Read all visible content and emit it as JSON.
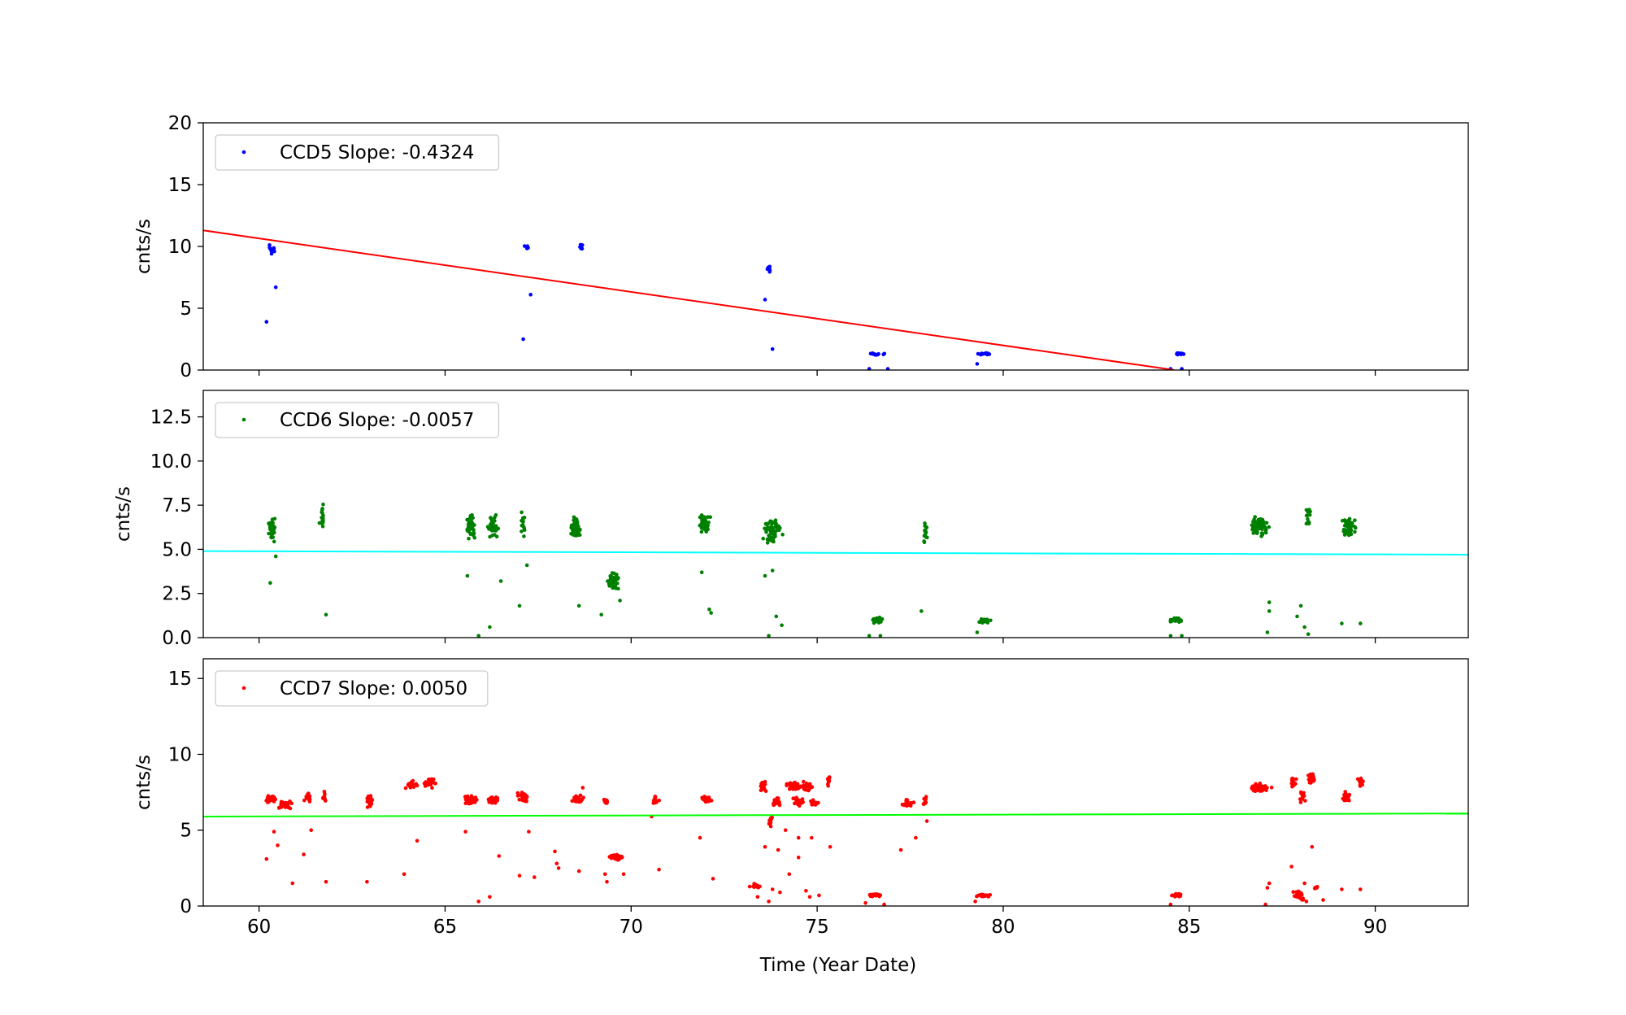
{
  "figure": {
    "xlabel": "Time (Year Date)"
  },
  "chart_data": [
    {
      "type": "scatter",
      "ylabel": "cnts/s",
      "xlim": [
        58.5,
        92.5
      ],
      "ylim": [
        0,
        20
      ],
      "xticks": [
        60,
        65,
        70,
        75,
        80,
        85,
        90
      ],
      "yticks": [
        0,
        5,
        10,
        15,
        20
      ],
      "ytick_labels": [
        "0",
        "5",
        "10",
        "15",
        "20"
      ],
      "show_xtick_labels": false,
      "legend": {
        "label": "CCD5 Slope: -0.4324",
        "placement": "upper-left"
      },
      "series": [
        {
          "color": "#0000ff",
          "clusters": [
            {
              "x": 60.35,
              "y": 9.7,
              "n": 16,
              "xs": 0.08,
              "ys": 0.3
            },
            {
              "x": 67.2,
              "y": 9.95,
              "n": 8,
              "xs": 0.04,
              "ys": 0.15
            },
            {
              "x": 68.65,
              "y": 9.9,
              "n": 8,
              "xs": 0.04,
              "ys": 0.3
            },
            {
              "x": 73.7,
              "y": 8.2,
              "n": 8,
              "xs": 0.05,
              "ys": 0.2
            },
            {
              "x": 76.6,
              "y": 1.3,
              "n": 12,
              "xs": 0.15,
              "ys": 0.06
            },
            {
              "x": 79.5,
              "y": 1.3,
              "n": 12,
              "xs": 0.15,
              "ys": 0.06
            },
            {
              "x": 84.7,
              "y": 1.3,
              "n": 12,
              "xs": 0.12,
              "ys": 0.06
            }
          ],
          "points": [
            [
              60.2,
              3.9
            ],
            [
              60.45,
              6.7
            ],
            [
              67.1,
              2.5
            ],
            [
              67.3,
              6.1
            ],
            [
              73.6,
              5.7
            ],
            [
              73.8,
              1.7
            ],
            [
              76.4,
              0.1
            ],
            [
              76.9,
              0.1
            ],
            [
              79.3,
              0.5
            ],
            [
              84.5,
              0.1
            ],
            [
              84.8,
              0.1
            ]
          ]
        }
      ],
      "fit": {
        "color": "#ff0000",
        "y_start": 11.3,
        "y_end": 0.0,
        "x_start": 58.5,
        "x_end": 84.6
      }
    },
    {
      "type": "scatter",
      "ylabel": "cnts/s",
      "xlim": [
        58.5,
        92.5
      ],
      "ylim": [
        0,
        14
      ],
      "xticks": [
        60,
        65,
        70,
        75,
        80,
        85,
        90
      ],
      "yticks": [
        0,
        2.5,
        5,
        7.5,
        10,
        12.5
      ],
      "ytick_labels": [
        "0.0",
        "2.5",
        "5.0",
        "7.5",
        "10.0",
        "12.5"
      ],
      "show_xtick_labels": false,
      "legend": {
        "label": "CCD6 Slope: -0.0057",
        "placement": "upper-left"
      },
      "series": [
        {
          "color": "#008000",
          "clusters": [
            {
              "x": 60.35,
              "y": 6.2,
              "n": 30,
              "xs": 0.07,
              "ys": 0.5
            },
            {
              "x": 61.7,
              "y": 6.8,
              "n": 14,
              "xs": 0.05,
              "ys": 0.5
            },
            {
              "x": 65.7,
              "y": 6.3,
              "n": 40,
              "xs": 0.1,
              "ys": 0.5
            },
            {
              "x": 66.3,
              "y": 6.2,
              "n": 35,
              "xs": 0.1,
              "ys": 0.5
            },
            {
              "x": 67.1,
              "y": 6.4,
              "n": 14,
              "xs": 0.05,
              "ys": 0.45
            },
            {
              "x": 68.5,
              "y": 6.2,
              "n": 45,
              "xs": 0.12,
              "ys": 0.45
            },
            {
              "x": 69.5,
              "y": 3.2,
              "n": 45,
              "xs": 0.12,
              "ys": 0.35
            },
            {
              "x": 71.95,
              "y": 6.4,
              "n": 45,
              "xs": 0.12,
              "ys": 0.45
            },
            {
              "x": 73.8,
              "y": 6.0,
              "n": 60,
              "xs": 0.18,
              "ys": 0.55
            },
            {
              "x": 76.6,
              "y": 1.0,
              "n": 30,
              "xs": 0.12,
              "ys": 0.12
            },
            {
              "x": 77.9,
              "y": 6.0,
              "n": 16,
              "xs": 0.04,
              "ys": 0.55
            },
            {
              "x": 79.5,
              "y": 0.95,
              "n": 30,
              "xs": 0.12,
              "ys": 0.1
            },
            {
              "x": 84.65,
              "y": 1.0,
              "n": 20,
              "xs": 0.1,
              "ys": 0.12
            },
            {
              "x": 86.9,
              "y": 6.3,
              "n": 70,
              "xs": 0.18,
              "ys": 0.5
            },
            {
              "x": 88.2,
              "y": 6.8,
              "n": 16,
              "xs": 0.06,
              "ys": 0.5
            },
            {
              "x": 89.3,
              "y": 6.2,
              "n": 50,
              "xs": 0.15,
              "ys": 0.45
            }
          ],
          "points": [
            [
              60.3,
              3.1
            ],
            [
              60.45,
              4.6
            ],
            [
              61.8,
              1.3
            ],
            [
              65.6,
              3.5
            ],
            [
              65.9,
              0.1
            ],
            [
              66.2,
              0.6
            ],
            [
              66.5,
              3.2
            ],
            [
              67.0,
              1.8
            ],
            [
              67.2,
              4.1
            ],
            [
              68.6,
              1.8
            ],
            [
              69.2,
              1.3
            ],
            [
              69.7,
              2.1
            ],
            [
              71.9,
              3.7
            ],
            [
              72.1,
              1.6
            ],
            [
              72.15,
              1.4
            ],
            [
              73.6,
              3.5
            ],
            [
              73.7,
              0.1
            ],
            [
              73.8,
              3.8
            ],
            [
              73.9,
              1.2
            ],
            [
              74.05,
              0.7
            ],
            [
              76.4,
              0.1
            ],
            [
              76.7,
              0.1
            ],
            [
              77.8,
              1.5
            ],
            [
              79.3,
              0.3
            ],
            [
              84.5,
              0.1
            ],
            [
              84.8,
              0.1
            ],
            [
              87.15,
              2.0
            ],
            [
              87.15,
              1.5
            ],
            [
              87.1,
              0.3
            ],
            [
              87.9,
              1.2
            ],
            [
              88.0,
              1.8
            ],
            [
              88.1,
              0.6
            ],
            [
              88.2,
              0.2
            ],
            [
              89.1,
              0.8
            ],
            [
              89.6,
              0.8
            ]
          ]
        }
      ],
      "fit": {
        "color": "#00ffff",
        "y_start": 4.9,
        "y_end": 4.7,
        "x_start": 58.5,
        "x_end": 92.5
      }
    },
    {
      "type": "scatter",
      "ylabel": "cnts/s",
      "xlim": [
        58.5,
        92.5
      ],
      "ylim": [
        0,
        16.3
      ],
      "xticks": [
        60,
        65,
        70,
        75,
        80,
        85,
        90
      ],
      "xtick_labels": [
        "60",
        "65",
        "70",
        "75",
        "80",
        "85",
        "90"
      ],
      "yticks": [
        0,
        5,
        10,
        15
      ],
      "ytick_labels": [
        "0",
        "5",
        "10",
        "15"
      ],
      "show_xtick_labels": true,
      "legend": {
        "label": "CCD7 Slope: 0.0050",
        "placement": "upper-left"
      },
      "series": [
        {
          "color": "#ff0000",
          "clusters": [
            {
              "x": 60.3,
              "y": 7.05,
              "n": 30,
              "xs": 0.09,
              "ys": 0.2
            },
            {
              "x": 60.7,
              "y": 6.7,
              "n": 40,
              "xs": 0.15,
              "ys": 0.2
            },
            {
              "x": 61.3,
              "y": 7.2,
              "n": 20,
              "xs": 0.08,
              "ys": 0.2
            },
            {
              "x": 61.75,
              "y": 7.1,
              "n": 12,
              "xs": 0.05,
              "ys": 0.25
            },
            {
              "x": 63.0,
              "y": 6.9,
              "n": 20,
              "xs": 0.08,
              "ys": 0.25
            },
            {
              "x": 64.1,
              "y": 8.0,
              "n": 30,
              "xs": 0.12,
              "ys": 0.25
            },
            {
              "x": 64.6,
              "y": 8.1,
              "n": 30,
              "xs": 0.12,
              "ys": 0.25
            },
            {
              "x": 65.7,
              "y": 7.0,
              "n": 30,
              "xs": 0.12,
              "ys": 0.2
            },
            {
              "x": 66.3,
              "y": 7.0,
              "n": 30,
              "xs": 0.12,
              "ys": 0.2
            },
            {
              "x": 67.1,
              "y": 7.2,
              "n": 25,
              "xs": 0.1,
              "ys": 0.25
            },
            {
              "x": 68.55,
              "y": 7.0,
              "n": 35,
              "xs": 0.15,
              "ys": 0.2
            },
            {
              "x": 69.3,
              "y": 6.9,
              "n": 12,
              "xs": 0.05,
              "ys": 0.15
            },
            {
              "x": 69.6,
              "y": 3.2,
              "n": 30,
              "xs": 0.12,
              "ys": 0.15
            },
            {
              "x": 70.65,
              "y": 7.0,
              "n": 15,
              "xs": 0.06,
              "ys": 0.2
            },
            {
              "x": 72.0,
              "y": 7.05,
              "n": 30,
              "xs": 0.12,
              "ys": 0.18
            },
            {
              "x": 73.35,
              "y": 1.3,
              "n": 15,
              "xs": 0.1,
              "ys": 0.1
            },
            {
              "x": 73.55,
              "y": 7.9,
              "n": 15,
              "xs": 0.06,
              "ys": 0.3
            },
            {
              "x": 73.75,
              "y": 5.6,
              "n": 12,
              "xs": 0.04,
              "ys": 0.3
            },
            {
              "x": 73.9,
              "y": 6.9,
              "n": 25,
              "xs": 0.1,
              "ys": 0.2
            },
            {
              "x": 74.35,
              "y": 7.9,
              "n": 45,
              "xs": 0.18,
              "ys": 0.25
            },
            {
              "x": 74.75,
              "y": 7.9,
              "n": 25,
              "xs": 0.1,
              "ys": 0.25
            },
            {
              "x": 74.5,
              "y": 6.9,
              "n": 25,
              "xs": 0.12,
              "ys": 0.2
            },
            {
              "x": 74.9,
              "y": 6.8,
              "n": 20,
              "xs": 0.08,
              "ys": 0.2
            },
            {
              "x": 75.3,
              "y": 8.3,
              "n": 12,
              "xs": 0.04,
              "ys": 0.3
            },
            {
              "x": 76.55,
              "y": 0.7,
              "n": 25,
              "xs": 0.15,
              "ys": 0.08
            },
            {
              "x": 77.45,
              "y": 6.8,
              "n": 25,
              "xs": 0.12,
              "ys": 0.2
            },
            {
              "x": 77.9,
              "y": 7.0,
              "n": 12,
              "xs": 0.04,
              "ys": 0.25
            },
            {
              "x": 79.45,
              "y": 0.7,
              "n": 25,
              "xs": 0.15,
              "ys": 0.08
            },
            {
              "x": 84.65,
              "y": 0.7,
              "n": 20,
              "xs": 0.12,
              "ys": 0.08
            },
            {
              "x": 86.9,
              "y": 7.8,
              "n": 60,
              "xs": 0.2,
              "ys": 0.2
            },
            {
              "x": 87.8,
              "y": 8.2,
              "n": 15,
              "xs": 0.06,
              "ys": 0.25
            },
            {
              "x": 88.3,
              "y": 8.4,
              "n": 20,
              "xs": 0.08,
              "ys": 0.25
            },
            {
              "x": 88.05,
              "y": 7.2,
              "n": 12,
              "xs": 0.06,
              "ys": 0.4
            },
            {
              "x": 89.2,
              "y": 7.2,
              "n": 25,
              "xs": 0.1,
              "ys": 0.25
            },
            {
              "x": 89.6,
              "y": 8.2,
              "n": 15,
              "xs": 0.06,
              "ys": 0.25
            },
            {
              "x": 87.95,
              "y": 0.7,
              "n": 20,
              "xs": 0.12,
              "ys": 0.3
            },
            {
              "x": 88.4,
              "y": 1.2,
              "n": 10,
              "xs": 0.05,
              "ys": 0.1
            }
          ],
          "points": [
            [
              60.2,
              3.1
            ],
            [
              60.4,
              4.9
            ],
            [
              60.5,
              4.0
            ],
            [
              60.9,
              1.5
            ],
            [
              61.2,
              3.4
            ],
            [
              61.4,
              5.0
            ],
            [
              61.8,
              1.6
            ],
            [
              62.9,
              1.6
            ],
            [
              63.9,
              2.1
            ],
            [
              64.25,
              4.3
            ],
            [
              65.55,
              4.9
            ],
            [
              65.9,
              0.3
            ],
            [
              66.2,
              0.6
            ],
            [
              66.45,
              3.3
            ],
            [
              67.0,
              2.0
            ],
            [
              67.25,
              4.9
            ],
            [
              67.4,
              1.9
            ],
            [
              67.95,
              3.6
            ],
            [
              68.0,
              2.8
            ],
            [
              68.05,
              2.5
            ],
            [
              68.6,
              2.3
            ],
            [
              68.7,
              7.8
            ],
            [
              69.3,
              2.1
            ],
            [
              69.35,
              1.6
            ],
            [
              69.8,
              2.1
            ],
            [
              70.55,
              5.9
            ],
            [
              70.75,
              2.4
            ],
            [
              71.85,
              4.5
            ],
            [
              72.2,
              1.8
            ],
            [
              73.4,
              0.6
            ],
            [
              73.6,
              3.9
            ],
            [
              73.7,
              0.3
            ],
            [
              73.8,
              1.1
            ],
            [
              73.95,
              3.7
            ],
            [
              74.0,
              0.9
            ],
            [
              74.15,
              5.0
            ],
            [
              74.25,
              2.1
            ],
            [
              74.5,
              3.2
            ],
            [
              74.5,
              4.5
            ],
            [
              74.7,
              1.0
            ],
            [
              74.85,
              4.5
            ],
            [
              74.8,
              0.6
            ],
            [
              75.05,
              0.7
            ],
            [
              75.35,
              3.9
            ],
            [
              76.3,
              0.2
            ],
            [
              76.8,
              0.1
            ],
            [
              77.25,
              3.7
            ],
            [
              77.65,
              4.5
            ],
            [
              77.95,
              5.6
            ],
            [
              79.25,
              0.3
            ],
            [
              84.5,
              0.1
            ],
            [
              87.1,
              1.2
            ],
            [
              87.15,
              1.5
            ],
            [
              87.05,
              0.1
            ],
            [
              87.75,
              2.6
            ],
            [
              88.1,
              1.5
            ],
            [
              88.15,
              0.3
            ],
            [
              88.3,
              3.9
            ],
            [
              88.6,
              0.4
            ],
            [
              89.1,
              1.1
            ],
            [
              89.6,
              1.1
            ]
          ]
        }
      ],
      "fit": {
        "color": "#00ff00",
        "y_start": 5.9,
        "y_end": 6.1,
        "x_start": 58.5,
        "x_end": 92.5
      }
    }
  ]
}
